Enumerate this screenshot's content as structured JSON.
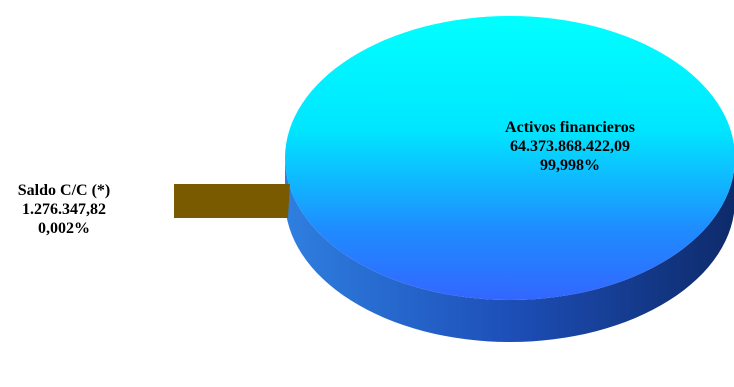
{
  "chart_data": {
    "type": "pie",
    "title": "",
    "slices": [
      {
        "label": "Activos financieros",
        "value": 64373868422.09,
        "value_text": "64.373.868.422,09",
        "percent": 99.998,
        "percent_text": "99,998%",
        "color": "#1ef5ff"
      },
      {
        "label": "Saldo C/C (*)",
        "value": 1276347.82,
        "value_text": "1.276.347,82",
        "percent": 0.002,
        "percent_text": "0,002%",
        "color": "#7a5a00"
      }
    ],
    "style": "3d",
    "legend": "none"
  },
  "colors": {
    "main_top_light": "#00ffff",
    "main_top_dark": "#2a6bff",
    "main_side": "#1f3f8f",
    "small_slice": "#7a5a00"
  }
}
